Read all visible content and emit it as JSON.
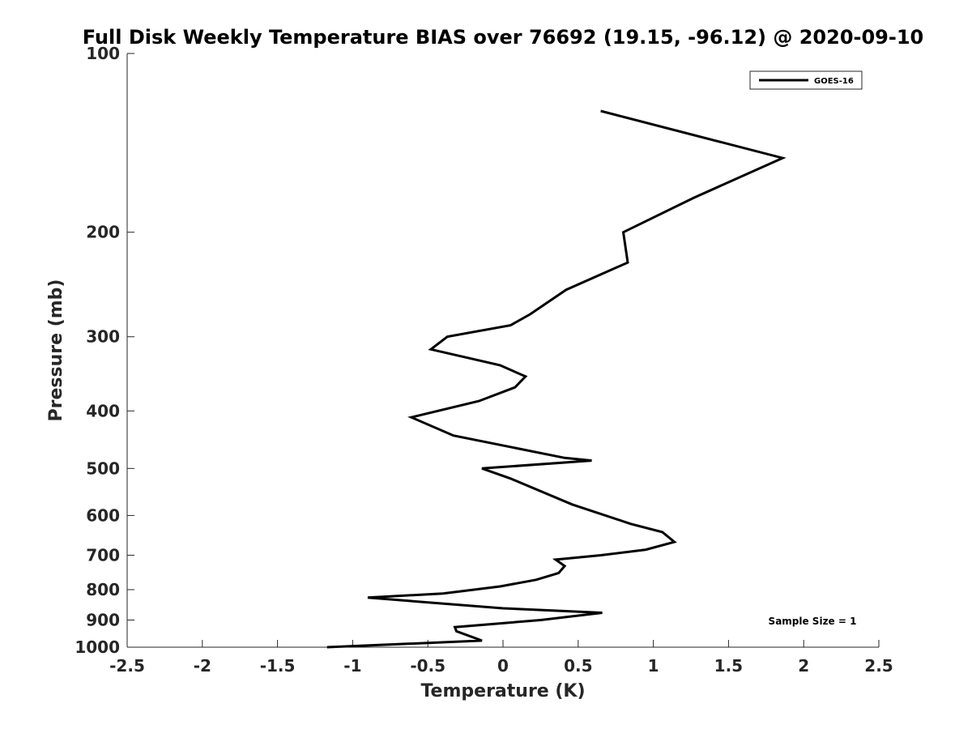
{
  "chart_data": {
    "type": "line",
    "title": "Full Disk Weekly Temperature BIAS over 76692 (19.15, -96.12) @ 2020-09-10",
    "xlabel": "Temperature (K)",
    "ylabel": "Pressure (mb)",
    "xlim": [
      -2.5,
      2.5
    ],
    "ylim": [
      1000,
      100
    ],
    "y_scale": "log",
    "x_ticks": [
      "-2.5",
      "-2",
      "-1.5",
      "-1",
      "-0.5",
      "0",
      "0.5",
      "1",
      "1.5",
      "2",
      "2.5"
    ],
    "x_tick_values": [
      -2.5,
      -2,
      -1.5,
      -1,
      -0.5,
      0,
      0.5,
      1,
      1.5,
      2,
      2.5
    ],
    "y_ticks": [
      "100",
      "200",
      "300",
      "400",
      "500",
      "600",
      "700",
      "800",
      "900",
      "1000"
    ],
    "y_tick_values": [
      100,
      200,
      300,
      400,
      500,
      600,
      700,
      800,
      900,
      1000
    ],
    "grid": false,
    "legend_position": "top-right",
    "annotation": "Sample Size = 1",
    "series": [
      {
        "name": "GOES-16",
        "color": "#000000",
        "points": [
          {
            "x": 0.65,
            "y": 125
          },
          {
            "x": 1.86,
            "y": 150
          },
          {
            "x": 1.27,
            "y": 175
          },
          {
            "x": 0.8,
            "y": 200
          },
          {
            "x": 0.83,
            "y": 225
          },
          {
            "x": 0.42,
            "y": 250
          },
          {
            "x": 0.18,
            "y": 275
          },
          {
            "x": 0.05,
            "y": 287
          },
          {
            "x": -0.37,
            "y": 300
          },
          {
            "x": -0.48,
            "y": 315
          },
          {
            "x": -0.02,
            "y": 335
          },
          {
            "x": 0.15,
            "y": 350
          },
          {
            "x": 0.08,
            "y": 365
          },
          {
            "x": -0.16,
            "y": 385
          },
          {
            "x": -0.61,
            "y": 410
          },
          {
            "x": -0.33,
            "y": 440
          },
          {
            "x": 0.41,
            "y": 480
          },
          {
            "x": 0.59,
            "y": 485
          },
          {
            "x": -0.14,
            "y": 500
          },
          {
            "x": 0.05,
            "y": 520
          },
          {
            "x": 0.46,
            "y": 575
          },
          {
            "x": 0.85,
            "y": 620
          },
          {
            "x": 1.06,
            "y": 640
          },
          {
            "x": 1.14,
            "y": 665
          },
          {
            "x": 0.95,
            "y": 685
          },
          {
            "x": 0.65,
            "y": 700
          },
          {
            "x": 0.35,
            "y": 712
          },
          {
            "x": 0.41,
            "y": 730
          },
          {
            "x": 0.37,
            "y": 750
          },
          {
            "x": 0.22,
            "y": 770
          },
          {
            "x": -0.02,
            "y": 790
          },
          {
            "x": -0.4,
            "y": 812
          },
          {
            "x": -0.9,
            "y": 825
          },
          {
            "x": 0.0,
            "y": 860
          },
          {
            "x": 0.66,
            "y": 875
          },
          {
            "x": 0.25,
            "y": 900
          },
          {
            "x": -0.32,
            "y": 925
          },
          {
            "x": -0.31,
            "y": 940
          },
          {
            "x": -0.14,
            "y": 975
          },
          {
            "x": -1.17,
            "y": 1000
          }
        ]
      }
    ]
  }
}
